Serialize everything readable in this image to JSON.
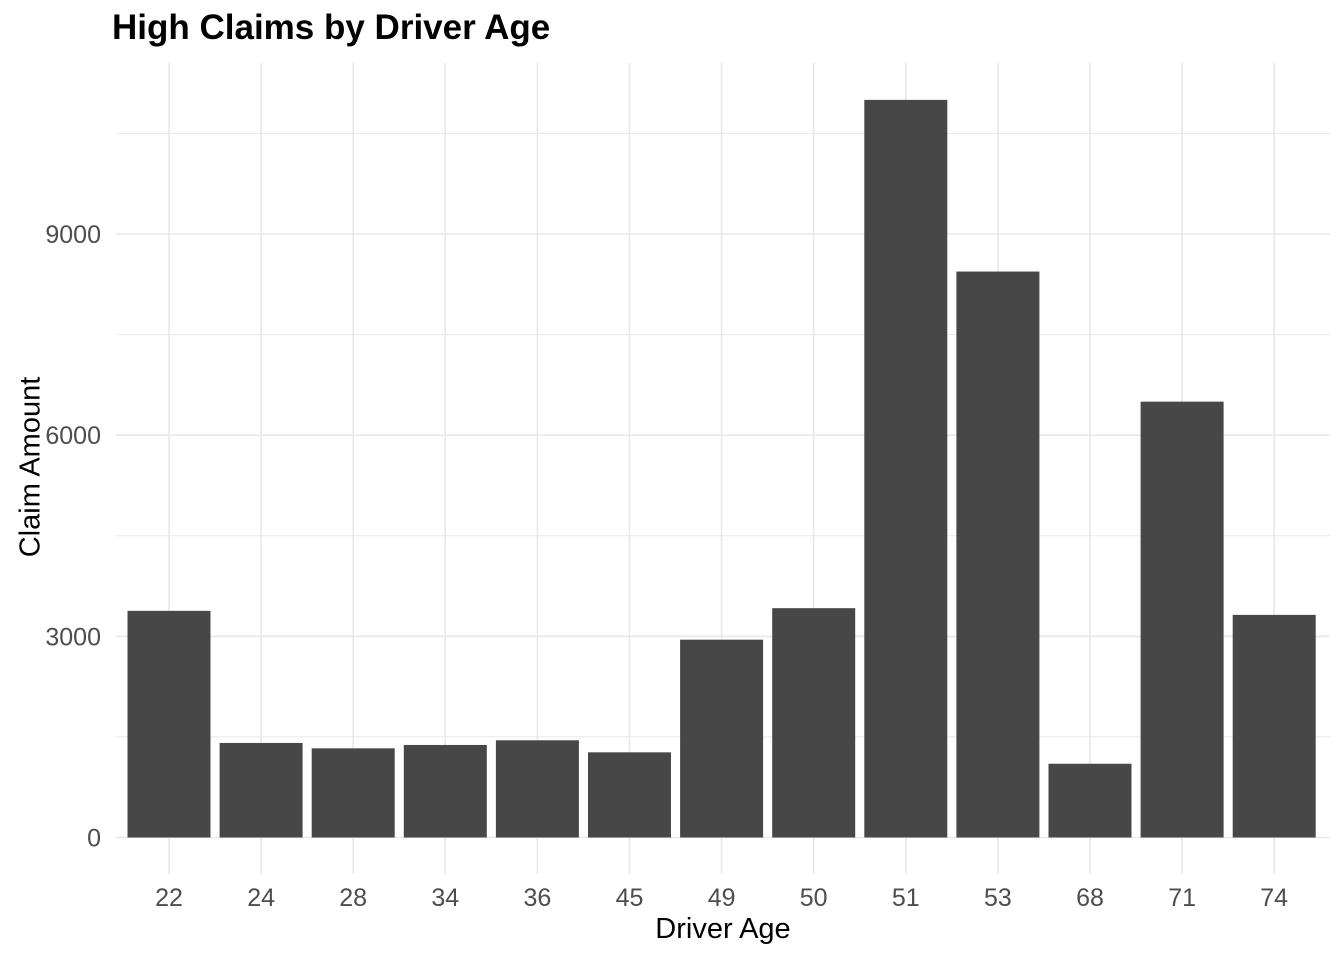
{
  "chart_data": {
    "type": "bar",
    "title": "High Claims by Driver Age",
    "xlabel": "Driver Age",
    "ylabel": "Claim Amount",
    "categories": [
      "22",
      "24",
      "28",
      "34",
      "36",
      "45",
      "49",
      "50",
      "51",
      "53",
      "68",
      "71",
      "74"
    ],
    "values": [
      3380,
      1410,
      1330,
      1380,
      1450,
      1270,
      2950,
      3420,
      11000,
      8440,
      1100,
      6500,
      3320
    ],
    "y_ticks": [
      0,
      3000,
      6000,
      9000
    ],
    "y_minor_ticks": [
      1500,
      4500,
      7500,
      10500
    ],
    "ylim": [
      0,
      11550
    ],
    "grid": "major and minor horizontal, major vertical at category centers",
    "legend": "none",
    "colors": {
      "bar": "#474747",
      "grid": "#E8E8E8",
      "tick_label": "#4D4D4D",
      "axis_title": "#000000",
      "title": "#000000",
      "background": "#FFFFFF"
    }
  }
}
